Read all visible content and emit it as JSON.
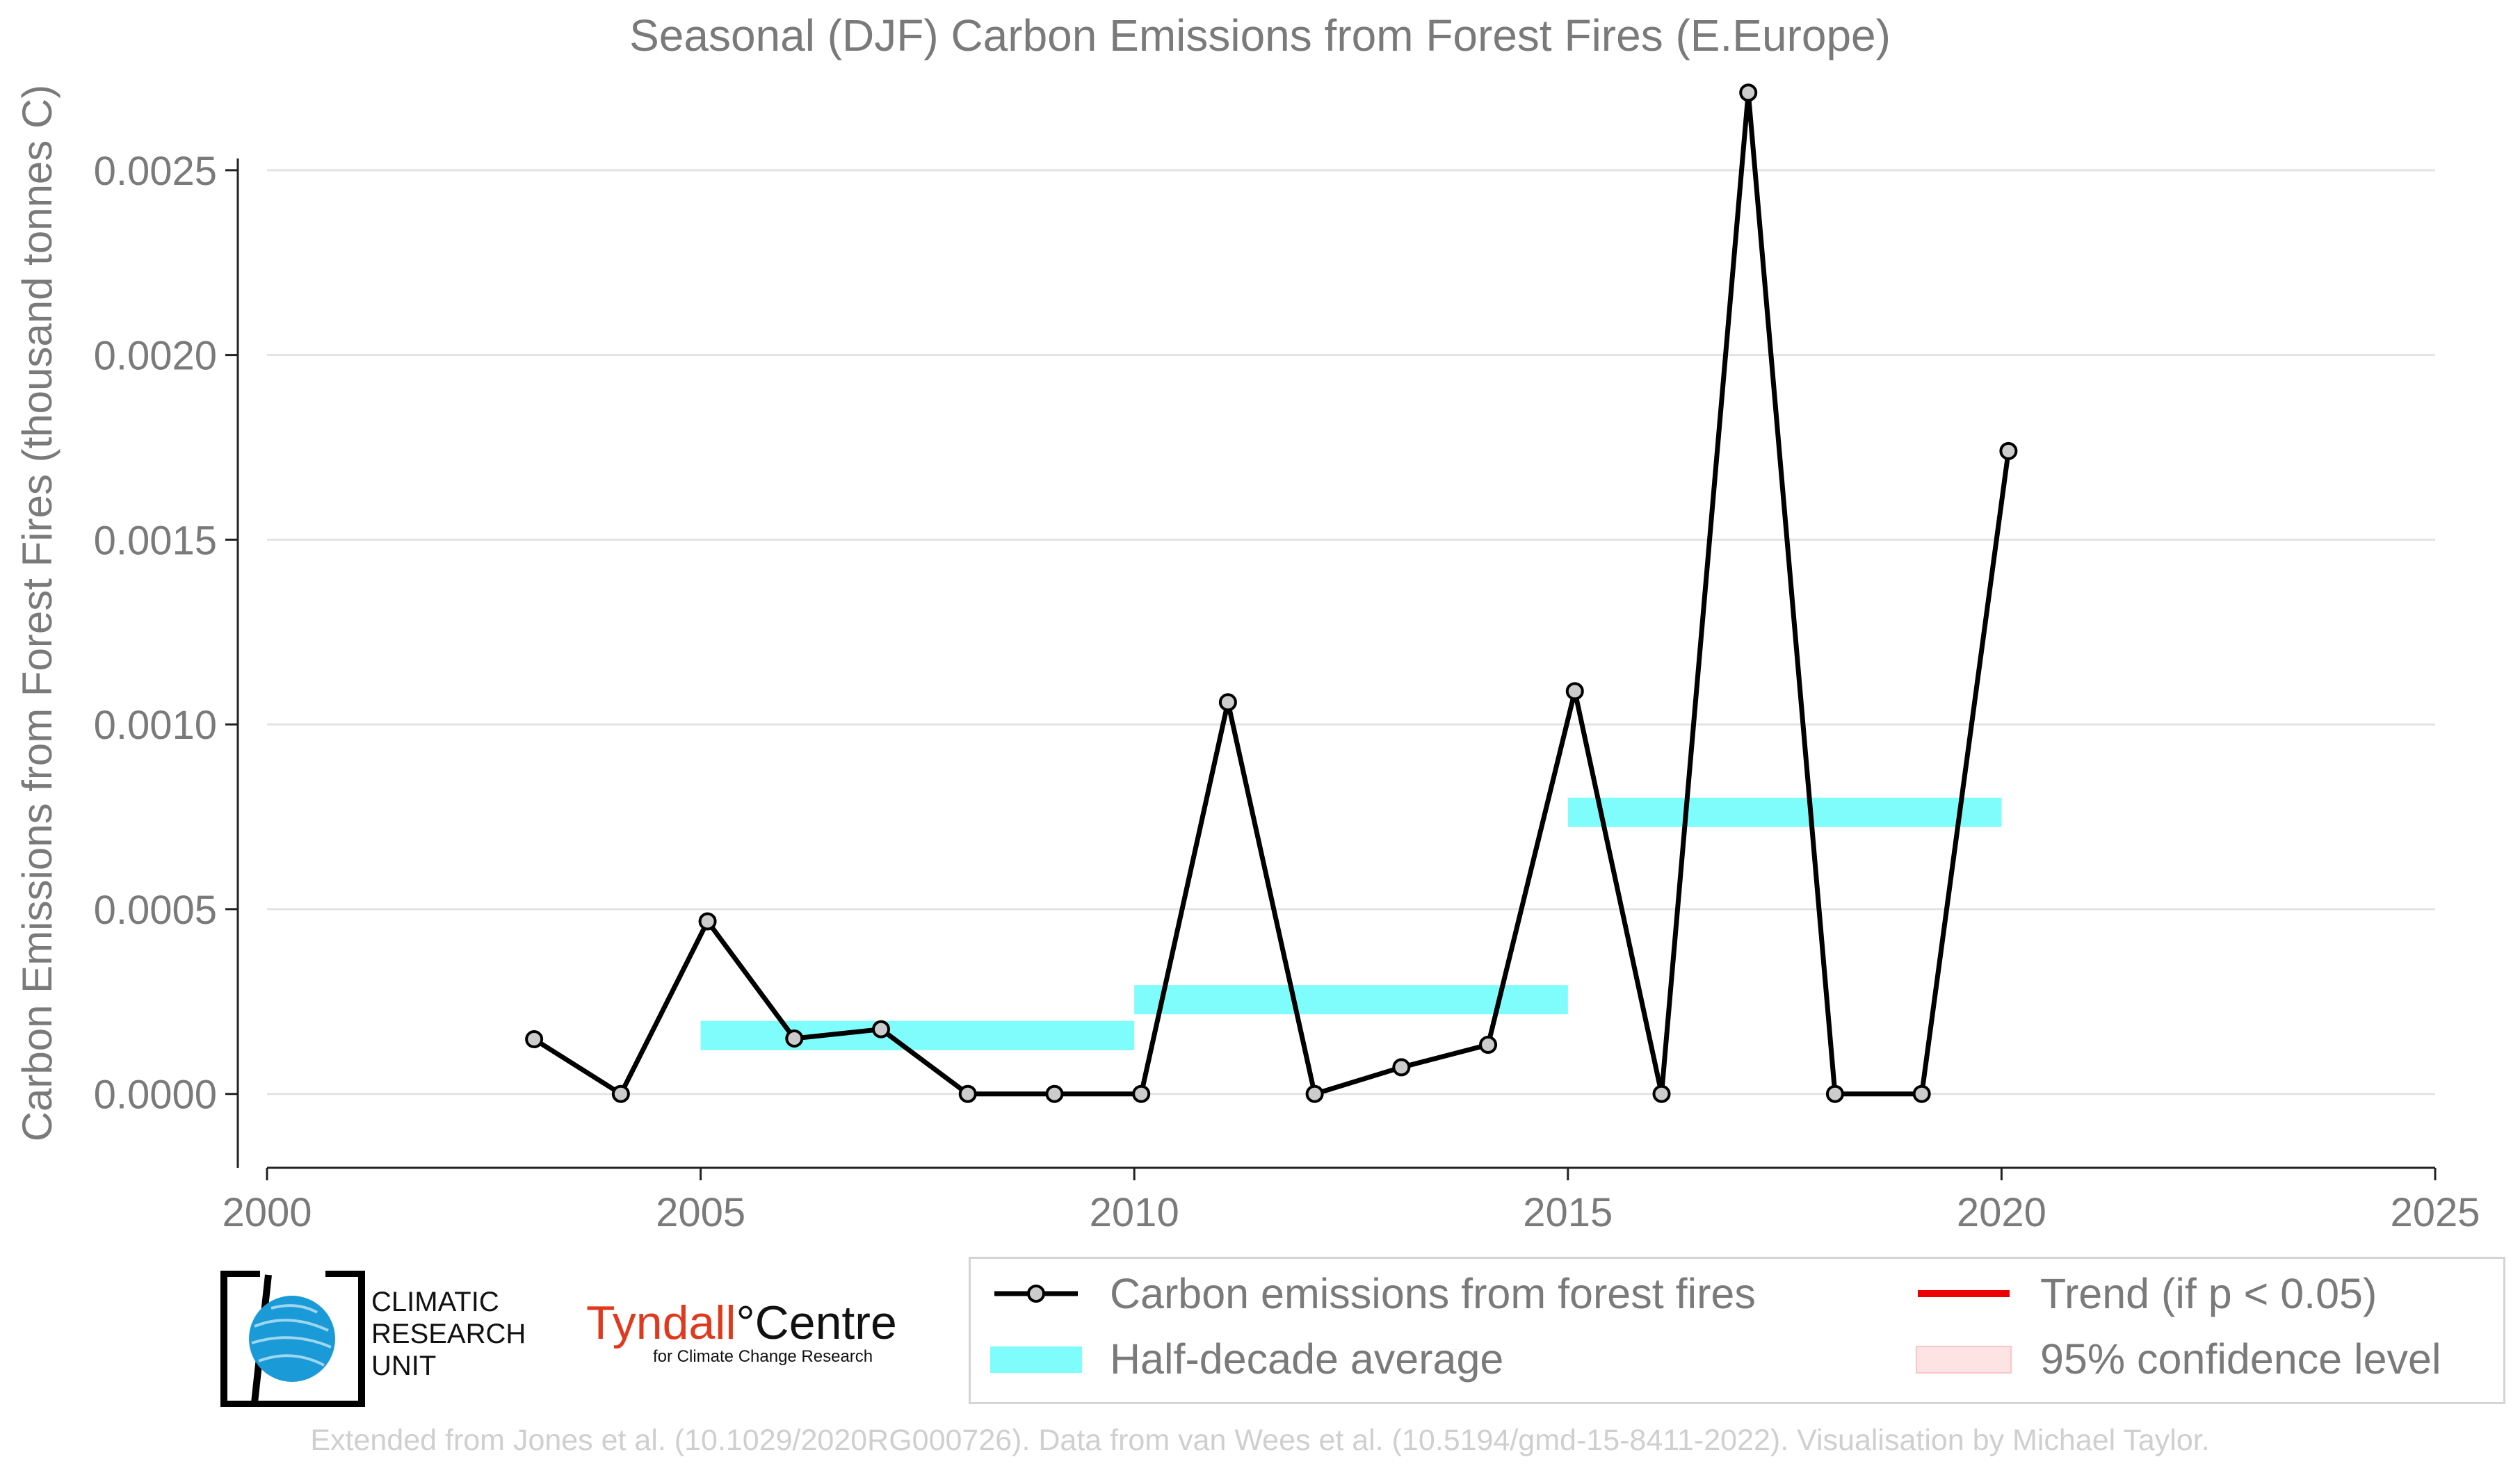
{
  "chart_data": {
    "type": "line",
    "title": "Seasonal (DJF) Carbon Emissions from Forest Fires (E.Europe)",
    "xlabel": "",
    "ylabel": "Carbon Emissions from Forest Fires (thousand tonnes C)",
    "xlim": [
      2000,
      2025
    ],
    "ylim": [
      -0.0002,
      0.00275
    ],
    "xticks": [
      2000,
      2005,
      2010,
      2015,
      2020,
      2025
    ],
    "xtick_labels": [
      "2000",
      "2005",
      "2010",
      "2015",
      "2020",
      "2025"
    ],
    "yticks": [
      0,
      0.0005,
      0.001,
      0.0015,
      0.002,
      0.0025
    ],
    "ytick_labels": [
      "0.0000",
      "0.0005",
      "0.0010",
      "0.0015",
      "0.0020",
      "0.0025"
    ],
    "grid": "horizontal",
    "series": [
      {
        "name": "Carbon emissions from forest fires",
        "color": "#000000",
        "marker_color": "#cccccc",
        "x": [
          2003,
          2004,
          2005,
          2006,
          2007,
          2008,
          2009,
          2010,
          2011,
          2012,
          2013,
          2014,
          2015,
          2016,
          2017,
          2018,
          2019,
          2020
        ],
        "values": [
          0.000148,
          0.0,
          0.000467,
          0.00015,
          0.000175,
          0.0,
          0.0,
          0.0,
          0.00106,
          0.0,
          7.2e-05,
          0.000133,
          0.00109,
          0.0,
          0.00271,
          0.0,
          0.0,
          0.00174
        ]
      }
    ],
    "half_decade_average": {
      "name": "Half-decade average",
      "color": "#7ffcfc",
      "segments": [
        {
          "x_start": 2005,
          "x_end": 2010,
          "value": 0.000158
        },
        {
          "x_start": 2010,
          "x_end": 2015,
          "value": 0.000255
        },
        {
          "x_start": 2015,
          "x_end": 2020,
          "value": 0.000762
        }
      ]
    },
    "legend": {
      "placement": "bottom-right",
      "entries": [
        {
          "label": "Carbon emissions from forest fires",
          "color": "#000000",
          "style": "line-marker"
        },
        {
          "label": "Trend (if p < 0.05)",
          "color": "#ee0000",
          "style": "line"
        },
        {
          "label": "Half-decade average",
          "color": "#7ffcfc",
          "style": "patch"
        },
        {
          "label": "95% confidence level",
          "color": "#fde3e3",
          "style": "patch"
        }
      ]
    }
  },
  "logos": {
    "cru": {
      "lines": [
        "CLIMATIC",
        "RESEARCH",
        "UNIT"
      ]
    },
    "tyndall": {
      "part1": "Tyndall",
      "degree": "°",
      "part2": "Centre",
      "subtitle": "for Climate Change Research"
    }
  },
  "credit": "Extended from Jones et al. (10.1029/2020RG000726). Data from van Wees et al. (10.5194/gmd-15-8411-2022). Visualisation by Michael Taylor."
}
